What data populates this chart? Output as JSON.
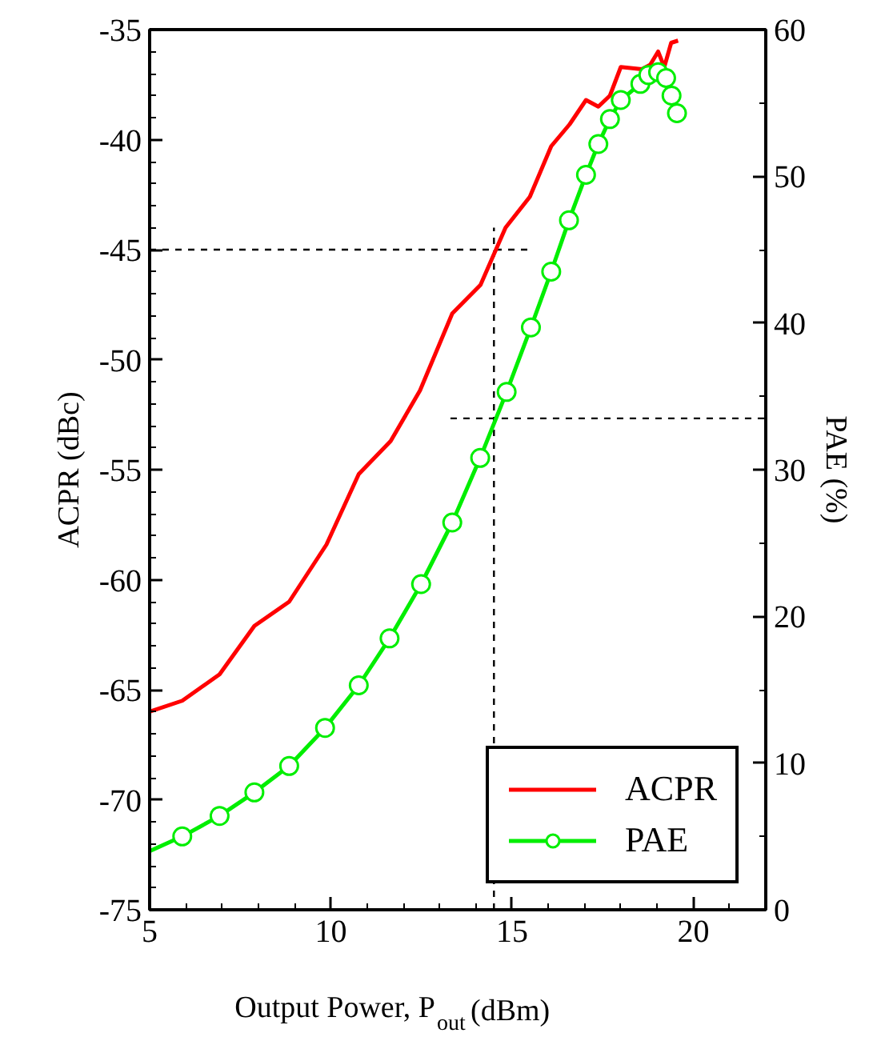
{
  "chart_data": {
    "type": "line",
    "xlabel": "Output Power, P$_{out}$ (dBm)",
    "ylabel": "ACPR (dBc)",
    "y2label": "PAE (%)",
    "xlim": [
      5,
      22
    ],
    "xticks": [
      5,
      10,
      15,
      20
    ],
    "ylim": [
      -75,
      -35
    ],
    "yticks": [
      -75,
      -70,
      -65,
      -60,
      -55,
      -50,
      -45,
      -40,
      -35
    ],
    "y2lim": [
      0,
      60
    ],
    "y2ticks": [
      0,
      10,
      20,
      30,
      40,
      50,
      60
    ],
    "grid": false,
    "legend": "bottom right",
    "series": [
      {
        "name": "ACPR",
        "color": "#ff0000",
        "marker": "none",
        "x": [
          5,
          5.9,
          6.93,
          7.89,
          8.85,
          9.88,
          10.77,
          11.65,
          12.46,
          13.35,
          14.13,
          14.82,
          15.49,
          16.08,
          16.59,
          17.04,
          17.38,
          17.7,
          18.0,
          18.58,
          18.81,
          19.03,
          19.2,
          19.39,
          19.58
        ],
        "values": [
          -66.0,
          -65.5,
          -64.3,
          -62.1,
          -61.0,
          -58.4,
          -55.2,
          -53.7,
          -51.4,
          -47.9,
          -46.6,
          -44.0,
          -42.6,
          -40.3,
          -39.3,
          -38.2,
          -38.5,
          -38.0,
          -36.7,
          -36.8,
          -36.6,
          -36.0,
          -36.7,
          -35.6,
          -35.5
        ]
      },
      {
        "name": "PAE",
        "color": "#00ee00",
        "marker": "circle",
        "axis": "y2",
        "x": [
          5,
          5.9,
          6.93,
          7.89,
          8.85,
          9.84,
          10.77,
          11.62,
          12.49,
          13.35,
          14.12,
          14.85,
          15.52,
          16.08,
          16.57,
          17.04,
          17.38,
          17.7,
          18.0,
          18.54,
          18.76,
          19.03,
          19.25,
          19.4,
          19.55
        ],
        "values": [
          4.0,
          5.0,
          6.4,
          8.0,
          9.8,
          12.4,
          15.3,
          18.5,
          22.2,
          26.4,
          30.8,
          35.3,
          39.7,
          43.5,
          47.0,
          50.1,
          52.2,
          53.9,
          55.2,
          56.3,
          56.9,
          57.1,
          56.7,
          55.5,
          54.3
        ]
      }
    ],
    "ref_lines": [
      {
        "axis": "y",
        "value": -45,
        "color": "#000000",
        "line_style": "dashed"
      },
      {
        "axis": "x",
        "value": 14.5,
        "color": "#000000",
        "line_style": "dashed"
      },
      {
        "axis": "y2",
        "value": 33.5,
        "color": "#000000",
        "line_style": "dashed"
      }
    ]
  }
}
